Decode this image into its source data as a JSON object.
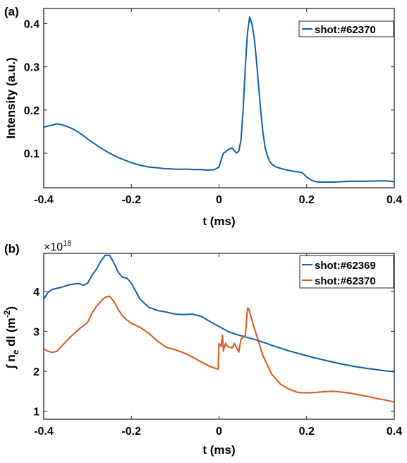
{
  "chart_data": [
    {
      "panel_label": "(a)",
      "type": "line",
      "xlabel": "t (ms)",
      "ylabel": "Intensity (a.u.)",
      "xlim": [
        -0.4,
        0.4
      ],
      "ylim": [
        0.02,
        0.435
      ],
      "xticks": [
        -0.4,
        -0.2,
        0,
        0.2,
        0.4
      ],
      "xtick_labels": [
        "-0.4",
        "-0.2",
        "0",
        "0.2",
        "0.4"
      ],
      "yticks": [
        0.1,
        0.2,
        0.3,
        0.4
      ],
      "ytick_labels": [
        "0.1",
        "0.2",
        "0.3",
        "0.4"
      ],
      "grid": false,
      "legend_position": "top-right",
      "series": [
        {
          "name": "shot:#62370",
          "color": "#0F5EA8",
          "x": [
            -0.4,
            -0.39,
            -0.38,
            -0.37,
            -0.36,
            -0.35,
            -0.34,
            -0.33,
            -0.32,
            -0.31,
            -0.3,
            -0.29,
            -0.28,
            -0.27,
            -0.26,
            -0.25,
            -0.24,
            -0.23,
            -0.22,
            -0.21,
            -0.2,
            -0.19,
            -0.18,
            -0.17,
            -0.16,
            -0.15,
            -0.14,
            -0.13,
            -0.12,
            -0.11,
            -0.1,
            -0.09,
            -0.08,
            -0.07,
            -0.06,
            -0.05,
            -0.04,
            -0.03,
            -0.02,
            -0.01,
            0.0,
            0.005,
            0.01,
            0.015,
            0.02,
            0.025,
            0.03,
            0.035,
            0.04,
            0.045,
            0.05,
            0.055,
            0.06,
            0.065,
            0.07,
            0.075,
            0.08,
            0.085,
            0.09,
            0.095,
            0.1,
            0.105,
            0.11,
            0.115,
            0.12,
            0.13,
            0.14,
            0.15,
            0.16,
            0.17,
            0.18,
            0.19,
            0.2,
            0.21,
            0.22,
            0.23,
            0.24,
            0.26,
            0.28,
            0.3,
            0.32,
            0.34,
            0.36,
            0.38,
            0.39,
            0.4
          ],
          "y": [
            0.16,
            0.163,
            0.165,
            0.168,
            0.166,
            0.163,
            0.159,
            0.154,
            0.148,
            0.141,
            0.133,
            0.126,
            0.119,
            0.112,
            0.106,
            0.1,
            0.095,
            0.09,
            0.086,
            0.082,
            0.078,
            0.075,
            0.072,
            0.07,
            0.068,
            0.067,
            0.066,
            0.065,
            0.064,
            0.064,
            0.063,
            0.063,
            0.063,
            0.063,
            0.062,
            0.062,
            0.062,
            0.061,
            0.061,
            0.062,
            0.068,
            0.085,
            0.1,
            0.103,
            0.108,
            0.11,
            0.112,
            0.106,
            0.1,
            0.105,
            0.13,
            0.2,
            0.3,
            0.38,
            0.415,
            0.4,
            0.37,
            0.32,
            0.26,
            0.2,
            0.15,
            0.115,
            0.095,
            0.082,
            0.075,
            0.068,
            0.065,
            0.062,
            0.06,
            0.058,
            0.057,
            0.055,
            0.045,
            0.038,
            0.034,
            0.033,
            0.033,
            0.033,
            0.034,
            0.035,
            0.035,
            0.035,
            0.036,
            0.036,
            0.035,
            0.034
          ]
        }
      ]
    },
    {
      "panel_label": "(b)",
      "type": "line",
      "xlabel": "t (ms)",
      "ylabel": "∫ n_e dl (m^-2)",
      "exponent_label": "×10^18",
      "xlim": [
        -0.4,
        0.4
      ],
      "ylim": [
        0.8,
        4.95
      ],
      "xticks": [
        -0.4,
        -0.2,
        0,
        0.2,
        0.4
      ],
      "xtick_labels": [
        "-0.4",
        "-0.2",
        "0",
        "0.2",
        "0.4"
      ],
      "yticks": [
        1,
        2,
        3,
        4
      ],
      "ytick_labels": [
        "1",
        "2",
        "3",
        "4"
      ],
      "grid": false,
      "legend_position": "top-right",
      "series": [
        {
          "name": "shot:#62369",
          "color": "#0F5EA8",
          "x": [
            -0.4,
            -0.39,
            -0.38,
            -0.36,
            -0.34,
            -0.32,
            -0.31,
            -0.3,
            -0.29,
            -0.28,
            -0.27,
            -0.26,
            -0.25,
            -0.24,
            -0.23,
            -0.22,
            -0.21,
            -0.2,
            -0.19,
            -0.18,
            -0.16,
            -0.14,
            -0.12,
            -0.1,
            -0.08,
            -0.06,
            -0.04,
            -0.02,
            0.0,
            0.02,
            0.04,
            0.06,
            0.08,
            0.1,
            0.12,
            0.14,
            0.16,
            0.18,
            0.2,
            0.22,
            0.24,
            0.26,
            0.28,
            0.3,
            0.32,
            0.34,
            0.36,
            0.38,
            0.4
          ],
          "y": [
            3.8,
            3.98,
            4.05,
            4.1,
            4.17,
            4.2,
            4.15,
            4.2,
            4.4,
            4.55,
            4.75,
            4.9,
            4.9,
            4.72,
            4.48,
            4.35,
            4.33,
            4.2,
            4.0,
            3.8,
            3.6,
            3.52,
            3.48,
            3.43,
            3.42,
            3.43,
            3.37,
            3.24,
            3.12,
            3.0,
            2.92,
            2.86,
            2.8,
            2.73,
            2.65,
            2.58,
            2.51,
            2.45,
            2.39,
            2.33,
            2.28,
            2.23,
            2.18,
            2.14,
            2.1,
            2.07,
            2.04,
            2.01,
            1.99
          ]
        },
        {
          "name": "shot:#62370",
          "color": "#D9541A",
          "x": [
            -0.4,
            -0.39,
            -0.38,
            -0.37,
            -0.36,
            -0.34,
            -0.32,
            -0.3,
            -0.29,
            -0.28,
            -0.27,
            -0.26,
            -0.25,
            -0.24,
            -0.23,
            -0.22,
            -0.21,
            -0.2,
            -0.18,
            -0.16,
            -0.14,
            -0.12,
            -0.1,
            -0.08,
            -0.06,
            -0.04,
            -0.02,
            -0.002,
            0.0,
            0.005,
            0.008,
            0.01,
            0.012,
            0.015,
            0.02,
            0.03,
            0.035,
            0.045,
            0.05,
            0.055,
            0.06,
            0.065,
            0.068,
            0.072,
            0.08,
            0.09,
            0.1,
            0.12,
            0.14,
            0.16,
            0.18,
            0.2,
            0.22,
            0.24,
            0.26,
            0.28,
            0.3,
            0.32,
            0.34,
            0.36,
            0.38,
            0.4
          ],
          "y": [
            2.56,
            2.5,
            2.47,
            2.5,
            2.62,
            2.85,
            3.05,
            3.22,
            3.45,
            3.62,
            3.75,
            3.85,
            3.88,
            3.75,
            3.55,
            3.38,
            3.28,
            3.2,
            3.1,
            2.95,
            2.75,
            2.6,
            2.54,
            2.46,
            2.35,
            2.23,
            2.12,
            2.05,
            2.7,
            2.62,
            2.9,
            2.5,
            2.6,
            2.7,
            2.62,
            2.58,
            2.7,
            2.48,
            2.8,
            2.85,
            2.9,
            3.58,
            3.56,
            3.4,
            3.1,
            2.75,
            2.4,
            1.93,
            1.68,
            1.55,
            1.47,
            1.46,
            1.47,
            1.49,
            1.5,
            1.48,
            1.45,
            1.41,
            1.37,
            1.32,
            1.28,
            1.23
          ]
        }
      ]
    }
  ]
}
